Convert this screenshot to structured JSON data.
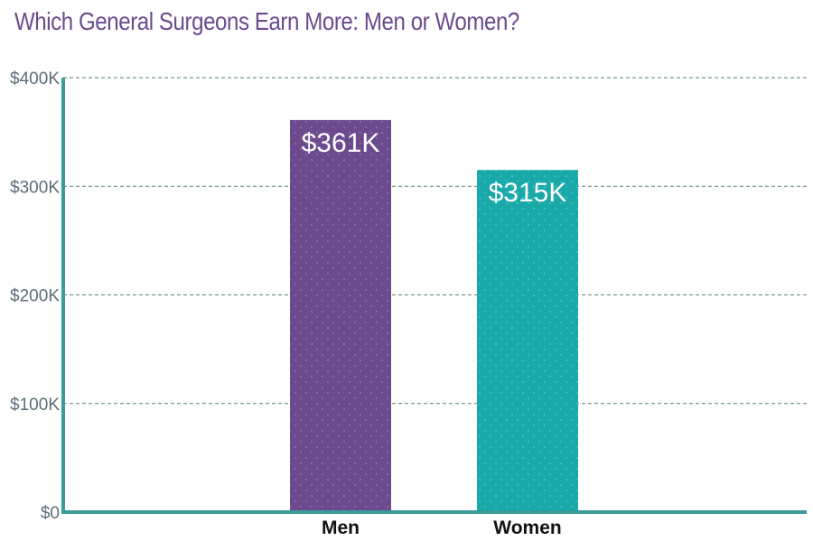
{
  "chart_data": {
    "type": "bar",
    "title": "Which General Surgeons Earn More: Men or Women?",
    "categories": [
      "Men",
      "Women"
    ],
    "values": [
      361,
      315
    ],
    "data_labels": [
      "$361K",
      "$315K"
    ],
    "ylim": [
      0,
      400
    ],
    "yticks": [
      0,
      100,
      200,
      300,
      400
    ],
    "ytick_labels": [
      "$0",
      "$100K",
      "$200K",
      "$300K",
      "$400K"
    ],
    "xlabel": "",
    "ylabel": "",
    "grid": true,
    "colors": [
      "#6b4a8e",
      "#1aa9a9"
    ],
    "axis_color": "#3a9a9a",
    "grid_color": "#5b7f86"
  }
}
